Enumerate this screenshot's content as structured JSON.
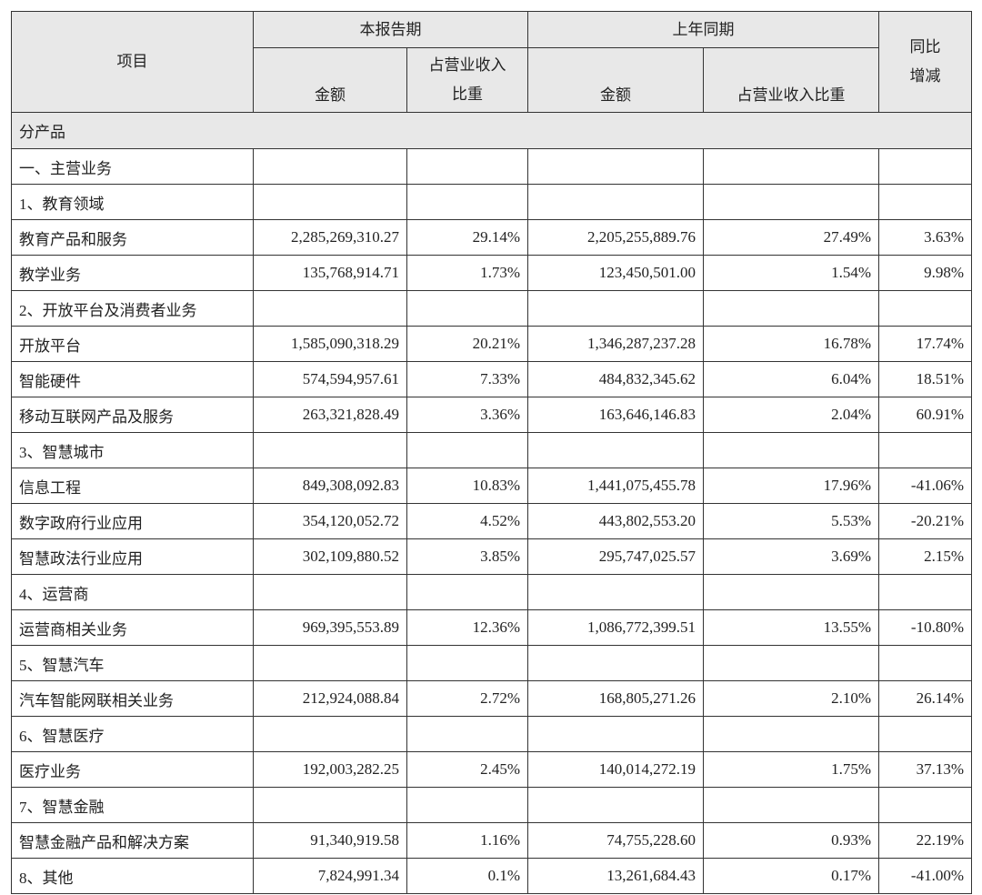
{
  "header": {
    "item": "项目",
    "current_period": "本报告期",
    "prior_period": "上年同期",
    "yoy_change": "同比\n增减",
    "current_amount": "金额",
    "current_share": "占营业收入\n比重",
    "prior_amount": "金额",
    "prior_share": "占营业收入比重"
  },
  "section": "分产品",
  "rows": [
    [
      "一、主营业务"
    ],
    [
      "1、教育领域"
    ],
    [
      "教育产品和服务",
      "2,285,269,310.27",
      "29.14%",
      "2,205,255,889.76",
      "27.49%",
      "3.63%"
    ],
    [
      "教学业务",
      "135,768,914.71",
      "1.73%",
      "123,450,501.00",
      "1.54%",
      "9.98%"
    ],
    [
      "2、开放平台及消费者业务"
    ],
    [
      "开放平台",
      "1,585,090,318.29",
      "20.21%",
      "1,346,287,237.28",
      "16.78%",
      "17.74%"
    ],
    [
      "智能硬件",
      "574,594,957.61",
      "7.33%",
      "484,832,345.62",
      "6.04%",
      "18.51%"
    ],
    [
      "移动互联网产品及服务",
      "263,321,828.49",
      "3.36%",
      "163,646,146.83",
      "2.04%",
      "60.91%"
    ],
    [
      "3、智慧城市"
    ],
    [
      "信息工程",
      "849,308,092.83",
      "10.83%",
      "1,441,075,455.78",
      "17.96%",
      "-41.06%"
    ],
    [
      "数字政府行业应用",
      "354,120,052.72",
      "4.52%",
      "443,802,553.20",
      "5.53%",
      "-20.21%"
    ],
    [
      "智慧政法行业应用",
      "302,109,880.52",
      "3.85%",
      "295,747,025.57",
      "3.69%",
      "2.15%"
    ],
    [
      "4、运营商"
    ],
    [
      "运营商相关业务",
      "969,395,553.89",
      "12.36%",
      "1,086,772,399.51",
      "13.55%",
      "-10.80%"
    ],
    [
      "5、智慧汽车"
    ],
    [
      "汽车智能网联相关业务",
      "212,924,088.84",
      "2.72%",
      "168,805,271.26",
      "2.10%",
      "26.14%"
    ],
    [
      "6、智慧医疗"
    ],
    [
      "医疗业务",
      "192,003,282.25",
      "2.45%",
      "140,014,272.19",
      "1.75%",
      "37.13%"
    ],
    [
      "7、智慧金融"
    ],
    [
      "智慧金融产品和解决方案",
      "91,340,919.58",
      "1.16%",
      "74,755,228.60",
      "0.93%",
      "22.19%"
    ],
    [
      "8、其他",
      "7,824,991.34",
      "0.1%",
      "13,261,684.43",
      "0.17%",
      "-41.00%"
    ]
  ]
}
